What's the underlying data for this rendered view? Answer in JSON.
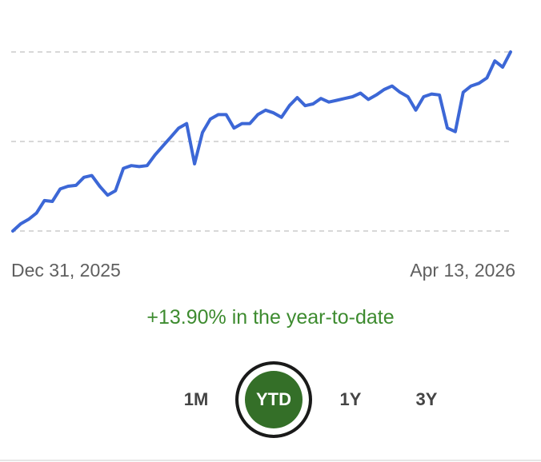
{
  "colors": {
    "line": "#3c67d6",
    "gridline": "#cccccc",
    "positive_text": "#3d8b2f",
    "active_button": "#346f28"
  },
  "chart_data": {
    "type": "line",
    "grid": true,
    "x_start_label": "Dec 31, 2025",
    "x_end_label": "Apr 13, 2026",
    "ylim": [
      0,
      2
    ],
    "gridlines": [
      0,
      1,
      2
    ],
    "series": [
      {
        "values": [
          0,
          0.08,
          0.13,
          0.2,
          0.34,
          0.33,
          0.47,
          0.5,
          0.51,
          0.6,
          0.62,
          0.5,
          0.4,
          0.45,
          0.7,
          0.73,
          0.72,
          0.73,
          0.85,
          0.95,
          1.05,
          1.15,
          1.2,
          0.75,
          1.1,
          1.25,
          1.3,
          1.3,
          1.15,
          1.2,
          1.2,
          1.3,
          1.35,
          1.32,
          1.27,
          1.4,
          1.49,
          1.4,
          1.42,
          1.48,
          1.44,
          1.46,
          1.48,
          1.5,
          1.54,
          1.47,
          1.52,
          1.58,
          1.62,
          1.55,
          1.5,
          1.35,
          1.5,
          1.53,
          1.52,
          1.15,
          1.11,
          1.55,
          1.62,
          1.65,
          1.71,
          1.9,
          1.83,
          2.0
        ]
      }
    ]
  },
  "performance_text": "+13.90% in the year-to-date",
  "range_selector": {
    "options": [
      {
        "label": "1M",
        "active": false
      },
      {
        "label": "YTD",
        "active": true
      },
      {
        "label": "1Y",
        "active": false
      },
      {
        "label": "3Y",
        "active": false
      }
    ]
  }
}
